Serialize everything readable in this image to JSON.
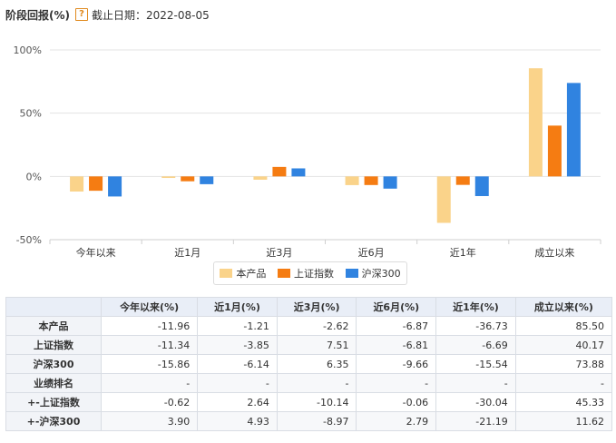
{
  "header": {
    "title": "阶段回报(%)",
    "help_glyph": "?",
    "date_label": "截止日期：2022-08-05"
  },
  "chart_data": {
    "type": "bar",
    "categories": [
      "今年以来",
      "近1月",
      "近3月",
      "近6月",
      "近1年",
      "成立以来"
    ],
    "series": [
      {
        "name": "本产品",
        "color": "#fad38a",
        "values": [
          -11.96,
          -1.21,
          -2.62,
          -6.87,
          -36.73,
          85.5
        ]
      },
      {
        "name": "上证指数",
        "color": "#f57c12",
        "values": [
          -11.34,
          -3.85,
          7.51,
          -6.81,
          -6.69,
          40.17
        ]
      },
      {
        "name": "沪深300",
        "color": "#3083e0",
        "values": [
          -15.86,
          -6.14,
          6.35,
          -9.66,
          -15.54,
          73.88
        ]
      }
    ],
    "ylim": [
      -50,
      100
    ],
    "yticks": [
      -50,
      0,
      50,
      100
    ],
    "ytick_labels": [
      "-50%",
      "0%",
      "50%",
      "100%"
    ],
    "grid": true,
    "legend_position": "bottom-center"
  },
  "table": {
    "columns": [
      "",
      "今年以来(%)",
      "近1月(%)",
      "近3月(%)",
      "近6月(%)",
      "近1年(%)",
      "成立以来(%)"
    ],
    "rows": [
      {
        "label": "本产品",
        "cells": [
          "-11.96",
          "-1.21",
          "-2.62",
          "-6.87",
          "-36.73",
          "85.50"
        ]
      },
      {
        "label": "上证指数",
        "cells": [
          "-11.34",
          "-3.85",
          "7.51",
          "-6.81",
          "-6.69",
          "40.17"
        ]
      },
      {
        "label": "沪深300",
        "cells": [
          "-15.86",
          "-6.14",
          "6.35",
          "-9.66",
          "-15.54",
          "73.88"
        ]
      },
      {
        "label": "业绩排名",
        "cells": [
          "-",
          "-",
          "-",
          "-",
          "-",
          "-"
        ]
      },
      {
        "label": "+-上证指数",
        "cells": [
          "-0.62",
          "2.64",
          "-10.14",
          "-0.06",
          "-30.04",
          "45.33"
        ]
      },
      {
        "label": "+-沪深300",
        "cells": [
          "3.90",
          "4.93",
          "-8.97",
          "2.79",
          "-21.19",
          "11.62"
        ]
      }
    ]
  }
}
